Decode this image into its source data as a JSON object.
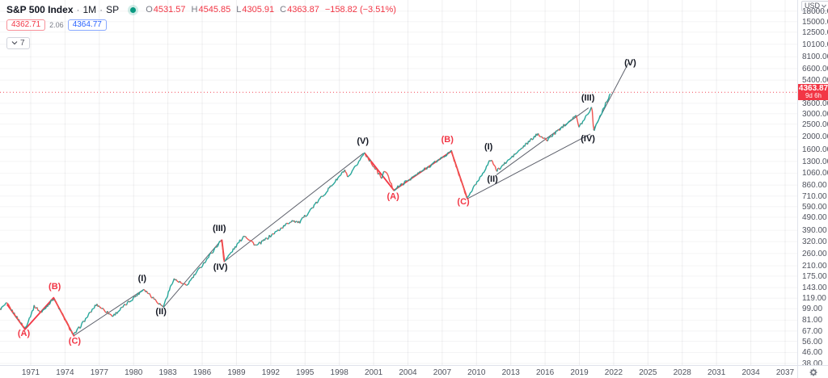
{
  "accent_colors": {
    "up": "#26a69a",
    "down": "#ef5350",
    "drawing_red": "#f23645",
    "drawing_black": "#131722",
    "trendline": "#5d606b",
    "axis_text": "#50535e",
    "status_dot": "#089981",
    "ask_blue": "#2962ff"
  },
  "legend": {
    "title": "S&P 500 Index",
    "separator": "·",
    "interval": "1M",
    "exchange": "SP",
    "ohlc": {
      "open_label": "O",
      "open": "4531.57",
      "high_label": "H",
      "high": "4545.85",
      "low_label": "L",
      "low": "4305.91",
      "close_label": "C",
      "close": "4363.87",
      "change": "−158.82 (−3.51%)"
    },
    "bid": "4362.71",
    "spread": "2.06",
    "ask": "4364.77",
    "collapsed_count": "7"
  },
  "price_axis": {
    "currency_button": "USD",
    "ticks": [
      "18000.00",
      "15000.00",
      "12500.00",
      "10100.00",
      "8100.00",
      "6600.00",
      "5400.00",
      "3600.00",
      "3000.00",
      "2500.00",
      "2000.00",
      "1600.00",
      "1300.00",
      "1060.00",
      "860.00",
      "710.00",
      "590.00",
      "490.00",
      "390.00",
      "320.00",
      "260.00",
      "210.00",
      "175.00",
      "143.00",
      "119.00",
      "99.00",
      "81.00",
      "67.00",
      "56.00",
      "46.00",
      "38.00"
    ],
    "price_label": {
      "value": "4363.87",
      "countdown": "9d 6h"
    }
  },
  "time_axis": {
    "ticks": [
      "1971",
      "1974",
      "1977",
      "1980",
      "1983",
      "1986",
      "1989",
      "1992",
      "1995",
      "1998",
      "2001",
      "2004",
      "2007",
      "2010",
      "2013",
      "2016",
      "2019",
      "2022",
      "2025",
      "2028",
      "2031",
      "2034",
      "2037"
    ]
  },
  "chart_data": {
    "type": "line",
    "title": "S&P 500 Index, 1M, SP (log scale) with Elliott Wave annotations",
    "y_scale": "log",
    "x_range_years": [
      1968.3,
      2038.0
    ],
    "y_range": [
      38,
      18000
    ],
    "grid": true,
    "current_price": 4363.87,
    "series": [
      {
        "name": "S&P 500 monthly close (anchor points)",
        "points": [
          [
            1968.3,
            98
          ],
          [
            1968.92,
            108
          ],
          [
            1970.5,
            70
          ],
          [
            1971.33,
            104
          ],
          [
            1971.92,
            92
          ],
          [
            1973.0,
            119
          ],
          [
            1974.75,
            62
          ],
          [
            1976.75,
            107
          ],
          [
            1978.17,
            87
          ],
          [
            1980.9,
            140
          ],
          [
            1982.58,
            102
          ],
          [
            1983.5,
            167
          ],
          [
            1984.6,
            147
          ],
          [
            1987.7,
            330
          ],
          [
            1987.92,
            225
          ],
          [
            1989.7,
            358
          ],
          [
            1990.75,
            297
          ],
          [
            1993.9,
            466
          ],
          [
            1994.5,
            445
          ],
          [
            1998.5,
            1120
          ],
          [
            1998.75,
            960
          ],
          [
            2000.2,
            1520
          ],
          [
            2001.7,
            970
          ],
          [
            2002.0,
            1130
          ],
          [
            2002.75,
            790
          ],
          [
            2007.8,
            1550
          ],
          [
            2009.17,
            680
          ],
          [
            2011.3,
            1360
          ],
          [
            2011.75,
            1100
          ],
          [
            2015.4,
            2120
          ],
          [
            2016.1,
            1870
          ],
          [
            2018.7,
            2930
          ],
          [
            2018.95,
            2350
          ],
          [
            2020.1,
            3380
          ],
          [
            2020.25,
            2240
          ],
          [
            2021.75,
            4363.87
          ]
        ]
      }
    ],
    "trendlines": [
      {
        "name": "(C)-(I) 1974-1980",
        "points": [
          [
            1974.8,
            62
          ],
          [
            1980.9,
            139
          ]
        ]
      },
      {
        "name": "(II)-(III) 1982-1987",
        "points": [
          [
            1982.6,
            101
          ],
          [
            1987.7,
            331
          ]
        ]
      },
      {
        "name": "(IV)-(V) 1987-2000",
        "points": [
          [
            1987.95,
            226
          ],
          [
            2000.1,
            1500
          ]
        ]
      },
      {
        "name": "support 2009-2020",
        "points": [
          [
            2009.2,
            678
          ],
          [
            2019.95,
            2100
          ]
        ]
      },
      {
        "name": "(II)-(III) 2011-2020",
        "points": [
          [
            2011.75,
            1030
          ],
          [
            2019.8,
            3320
          ]
        ]
      },
      {
        "name": "(IV)-(V) projection",
        "points": [
          [
            2020.22,
            2260
          ],
          [
            2023.3,
            7300
          ]
        ]
      }
    ],
    "zigzag_corrections": [
      {
        "name": "A-B-C 1968-1974",
        "points": [
          [
            1968.92,
            107
          ],
          [
            1970.5,
            69
          ],
          [
            1973.0,
            120
          ],
          [
            1974.8,
            61
          ]
        ]
      },
      {
        "name": "A-B-C 2000-2009",
        "points": [
          [
            2000.2,
            1510
          ],
          [
            2002.78,
            785
          ],
          [
            2007.8,
            1555
          ],
          [
            2009.2,
            678
          ]
        ]
      },
      {
        "name": "1987 crash leg",
        "points": [
          [
            1987.72,
            332
          ],
          [
            1987.95,
            224
          ]
        ]
      }
    ],
    "elliott_labels": [
      {
        "text": "(A)",
        "year": 1970.4,
        "price": 65,
        "color": "red"
      },
      {
        "text": "(B)",
        "year": 1973.1,
        "price": 148,
        "color": "red"
      },
      {
        "text": "(C)",
        "year": 1974.85,
        "price": 57,
        "color": "red"
      },
      {
        "text": "(I)",
        "year": 1980.75,
        "price": 170,
        "color": "black"
      },
      {
        "text": "(II)",
        "year": 1982.4,
        "price": 95,
        "color": "black"
      },
      {
        "text": "(III)",
        "year": 1987.5,
        "price": 408,
        "color": "black"
      },
      {
        "text": "(IV)",
        "year": 1987.6,
        "price": 207,
        "color": "black"
      },
      {
        "text": "(V)",
        "year": 2000.05,
        "price": 1870,
        "color": "black"
      },
      {
        "text": "(A)",
        "year": 2002.7,
        "price": 710,
        "color": "red"
      },
      {
        "text": "(B)",
        "year": 2007.45,
        "price": 1930,
        "color": "red"
      },
      {
        "text": "(C)",
        "year": 2008.85,
        "price": 650,
        "color": "red"
      },
      {
        "text": "(I)",
        "year": 2011.05,
        "price": 1700,
        "color": "black"
      },
      {
        "text": "(II)",
        "year": 2011.4,
        "price": 965,
        "color": "black"
      },
      {
        "text": "(III)",
        "year": 2019.75,
        "price": 3980,
        "color": "black"
      },
      {
        "text": "(IV)",
        "year": 2019.75,
        "price": 1950,
        "color": "black"
      },
      {
        "text": "(V)",
        "year": 2023.45,
        "price": 7390,
        "color": "black"
      }
    ]
  }
}
